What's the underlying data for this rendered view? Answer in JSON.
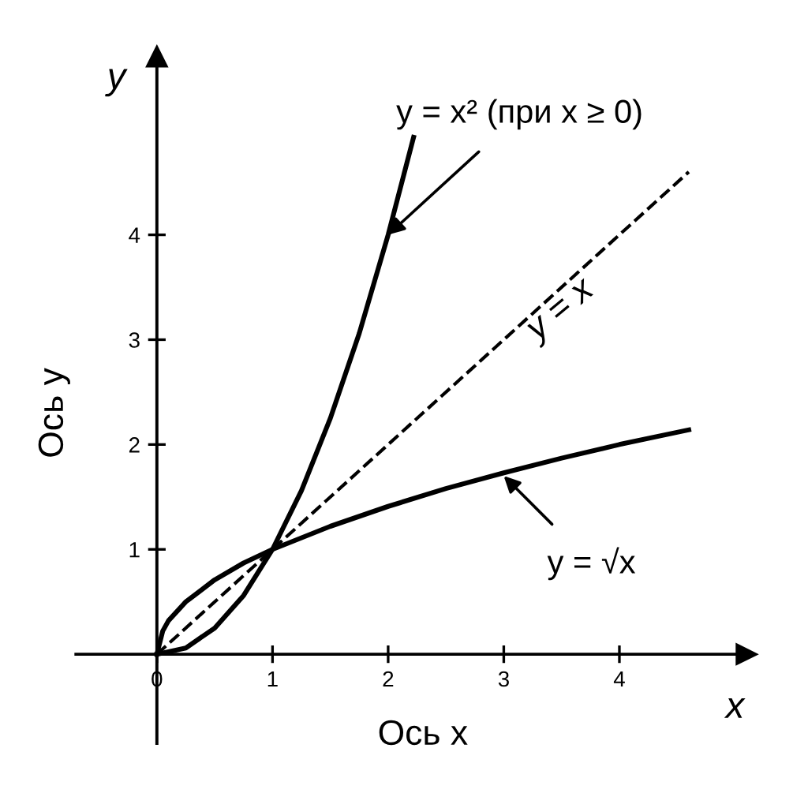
{
  "chart_data": {
    "type": "line",
    "xlabel": "Ось x",
    "ylabel": "Ось y",
    "xlim": [
      -0.7,
      5.1
    ],
    "ylim": [
      -0.85,
      5.7
    ],
    "xticks": [
      0,
      1,
      2,
      3,
      4
    ],
    "yticks": [
      1,
      2,
      3,
      4
    ],
    "grid": false,
    "legend": false,
    "marker": "none",
    "series": [
      {
        "color": "#000000",
        "line_style": "solid",
        "x": [
          0,
          0.25,
          0.5,
          0.75,
          1,
          1.25,
          1.5,
          1.75,
          2,
          2.22
        ],
        "values": [
          0,
          0.06,
          0.25,
          0.56,
          1,
          1.56,
          2.25,
          3.06,
          4,
          4.93
        ]
      },
      {
        "color": "#000000",
        "line_style": "dashed",
        "x": [
          0,
          4.6
        ],
        "values": [
          0,
          4.6
        ]
      },
      {
        "color": "#000000",
        "line_style": "solid",
        "x": [
          0,
          0.05,
          0.1,
          0.25,
          0.5,
          0.75,
          1,
          1.5,
          2,
          2.5,
          3,
          3.5,
          4,
          4.6
        ],
        "values": [
          0,
          0.22,
          0.32,
          0.5,
          0.71,
          0.87,
          1,
          1.22,
          1.41,
          1.58,
          1.73,
          1.87,
          2,
          2.14
        ]
      }
    ],
    "annotations": [
      {
        "text": "y = x² (при x ≥ 0)",
        "x": 2,
        "y": 4
      },
      {
        "text": "y = x",
        "x": 3.4,
        "y": 3.4
      },
      {
        "text": "y = √x",
        "x": 3,
        "y": 1.7
      },
      "x",
      "y"
    ]
  }
}
